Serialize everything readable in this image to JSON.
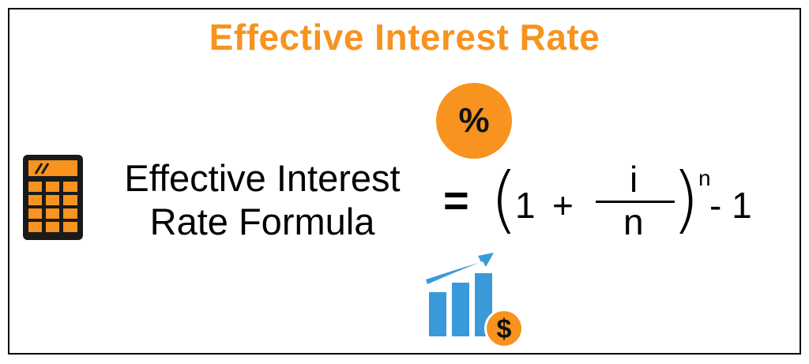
{
  "title": "Effective Interest Rate",
  "badge": {
    "symbol": "%",
    "icon": "percent-circle-icon"
  },
  "label_lines": [
    "Effective Interest",
    "Rate Formula"
  ],
  "formula": {
    "equals": "=",
    "paren_open": "(",
    "one": "1",
    "plus": "+",
    "numerator": "i",
    "denominator": "n",
    "paren_close": ")",
    "exponent": "n",
    "tail": "- 1"
  },
  "icons": {
    "calculator": "calculator-icon",
    "chart": "growth-chart-icon",
    "dollar": "dollar-coin-icon",
    "arrow": "trend-arrow-icon"
  },
  "colors": {
    "accent": "#f7931e",
    "chart_blue": "#3a9ad9",
    "text": "#000000"
  },
  "dollar_symbol": "$"
}
